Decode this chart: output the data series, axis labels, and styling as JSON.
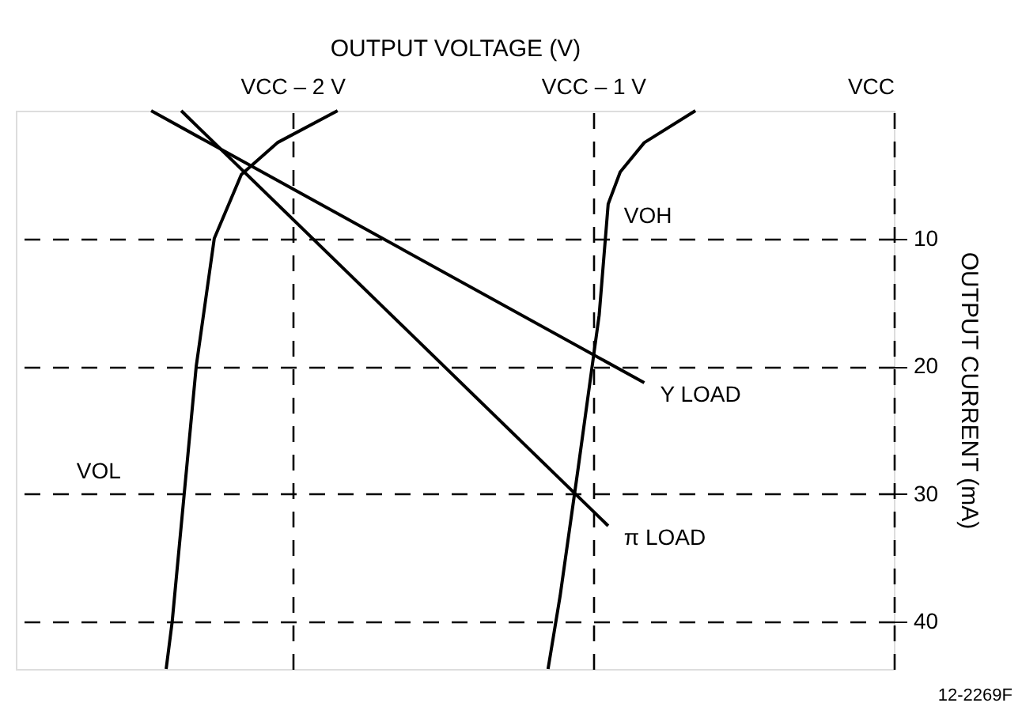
{
  "chart_data": {
    "type": "line",
    "xlabel": "OUTPUT VOLTAGE (V)",
    "ylabel": "OUTPUT CURRENT (mA)",
    "xlim": [
      -2.92,
      0
    ],
    "ylim": [
      43.7,
      0
    ],
    "xticks": [
      {
        "value": -2,
        "label": "VCC – 2 V"
      },
      {
        "value": -1,
        "label": "VCC – 1 V"
      },
      {
        "value": 0,
        "label": "VCC"
      }
    ],
    "yticks": [
      10,
      20,
      30,
      40
    ],
    "grid": true,
    "marker": "none",
    "line_style": "solid",
    "series": [
      {
        "color": "#000000",
        "x": [
          -1.85,
          -2.05,
          -2.17,
          -2.26,
          -2.32,
          -2.36,
          -2.4,
          -2.42
        ],
        "values": [
          0,
          2.5,
          5,
          10,
          20,
          30,
          40,
          43.7
        ]
      },
      {
        "color": "#000000",
        "x": [
          -0.66,
          -0.83,
          -0.91,
          -0.95,
          -0.98,
          -1.05,
          -1.11,
          -1.15
        ],
        "values": [
          0,
          2.5,
          4.8,
          7.3,
          16,
          28,
          38,
          43.7
        ]
      },
      {
        "color": "#000000",
        "x": [
          -2.47,
          -0.83
        ],
        "values": [
          0,
          21.3
        ]
      },
      {
        "color": "#000000",
        "x": [
          -2.37,
          -0.95
        ],
        "values": [
          0,
          32.5
        ]
      }
    ],
    "annotations": [
      {
        "text": "VOL",
        "x": -2.36,
        "y": 30
      },
      {
        "text": "VOH",
        "x": -0.95,
        "y": 7.3
      },
      {
        "text": "Y LOAD",
        "x": -0.83,
        "y": 21.3
      },
      {
        "text": "π LOAD",
        "x": -0.95,
        "y": 32.5
      },
      "12-2269F"
    ]
  }
}
